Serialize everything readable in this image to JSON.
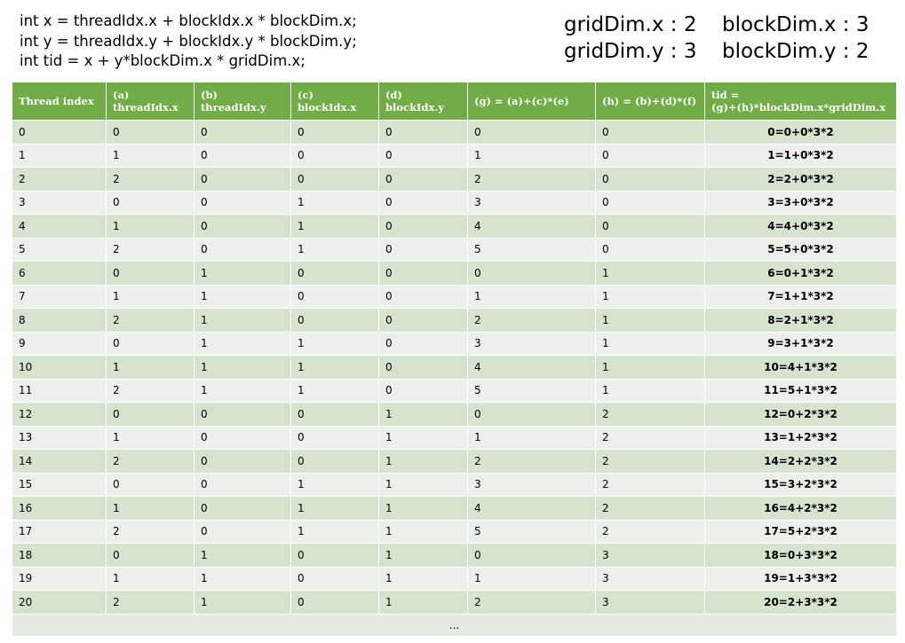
{
  "code": [
    "int x = threadIdx.x + blockIdx.x * blockDim.x;",
    "int y = threadIdx.y + blockIdx.y * blockDim.y;",
    "int tid = x + y*blockDim.x * gridDim.x;"
  ],
  "dims": [
    [
      "gridDim.x : 2",
      "blockDim.x : 3"
    ],
    [
      "gridDim.y : 3",
      "blockDim.y : 2"
    ]
  ],
  "table": {
    "header": [
      [
        "Thread index"
      ],
      [
        "(a)",
        "threadIdx.x"
      ],
      [
        "(b)",
        "threadIdx.y"
      ],
      [
        "(c)",
        "blockIdx.x"
      ],
      [
        "(d)",
        "blockIdx.y"
      ],
      [
        "(g) = (a)+(c)*(e)"
      ],
      [
        "(h) = (b)+(d)*(f)"
      ],
      [
        "tid =",
        "(g)+(h)*blockDim.x*gridDim.x"
      ]
    ],
    "rows": [
      [
        "0",
        "0",
        "0",
        "0",
        "0",
        "0",
        "0",
        "0=0+0*3*2"
      ],
      [
        "1",
        "1",
        "0",
        "0",
        "0",
        "1",
        "0",
        "1=1+0*3*2"
      ],
      [
        "2",
        "2",
        "0",
        "0",
        "0",
        "2",
        "0",
        "2=2+0*3*2"
      ],
      [
        "3",
        "0",
        "0",
        "1",
        "0",
        "3",
        "0",
        "3=3+0*3*2"
      ],
      [
        "4",
        "1",
        "0",
        "1",
        "0",
        "4",
        "0",
        "4=4+0*3*2"
      ],
      [
        "5",
        "2",
        "0",
        "1",
        "0",
        "5",
        "0",
        "5=5+0*3*2"
      ],
      [
        "6",
        "0",
        "1",
        "0",
        "0",
        "0",
        "1",
        "6=0+1*3*2"
      ],
      [
        "7",
        "1",
        "1",
        "0",
        "0",
        "1",
        "1",
        "7=1+1*3*2"
      ],
      [
        "8",
        "2",
        "1",
        "0",
        "0",
        "2",
        "1",
        "8=2+1*3*2"
      ],
      [
        "9",
        "0",
        "1",
        "1",
        "0",
        "3",
        "1",
        "9=3+1*3*2"
      ],
      [
        "10",
        "1",
        "1",
        "1",
        "0",
        "4",
        "1",
        "10=4+1*3*2"
      ],
      [
        "11",
        "2",
        "1",
        "1",
        "0",
        "5",
        "1",
        "11=5+1*3*2"
      ],
      [
        "12",
        "0",
        "0",
        "0",
        "1",
        "0",
        "2",
        "12=0+2*3*2"
      ],
      [
        "13",
        "1",
        "0",
        "0",
        "1",
        "1",
        "2",
        "13=1+2*3*2"
      ],
      [
        "14",
        "2",
        "0",
        "0",
        "1",
        "2",
        "2",
        "14=2+2*3*2"
      ],
      [
        "15",
        "0",
        "0",
        "1",
        "1",
        "3",
        "2",
        "15=3+2*3*2"
      ],
      [
        "16",
        "1",
        "0",
        "1",
        "1",
        "4",
        "2",
        "16=4+2*3*2"
      ],
      [
        "17",
        "2",
        "0",
        "1",
        "1",
        "5",
        "2",
        "17=5+2*3*2"
      ],
      [
        "18",
        "0",
        "1",
        "0",
        "1",
        "0",
        "3",
        "18=0+3*3*2"
      ],
      [
        "19",
        "1",
        "1",
        "0",
        "1",
        "1",
        "3",
        "19=1+3*3*2"
      ],
      [
        "20",
        "2",
        "1",
        "0",
        "1",
        "2",
        "3",
        "20=2+3*3*2"
      ]
    ],
    "footer": "..."
  }
}
